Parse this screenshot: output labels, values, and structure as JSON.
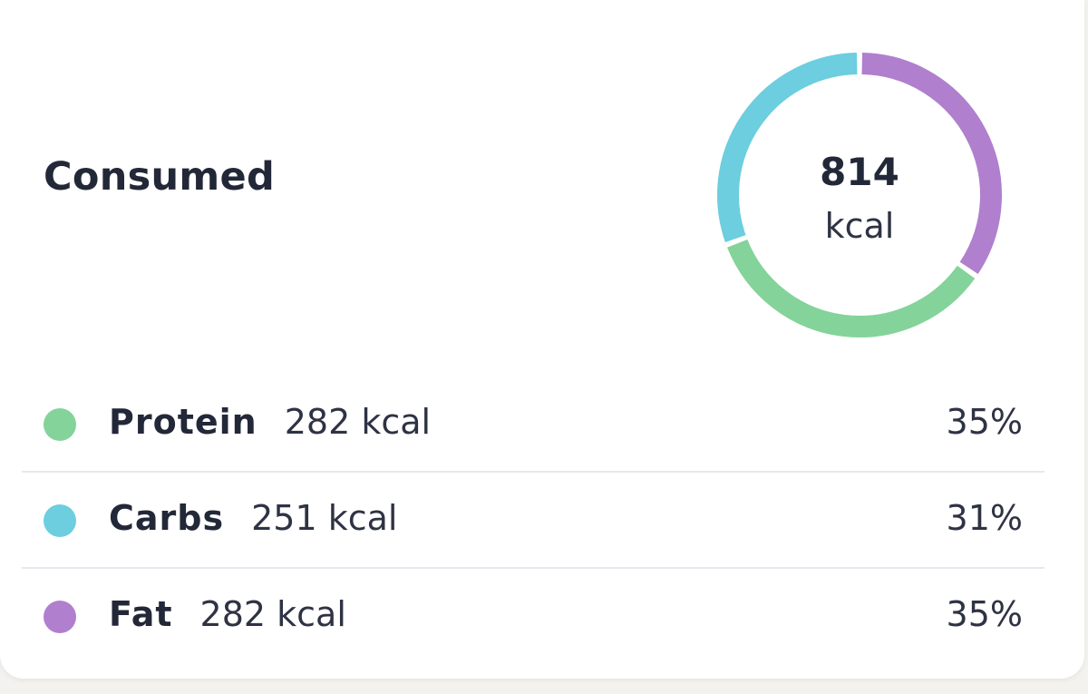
{
  "card": {
    "title": "Consumed"
  },
  "summary": {
    "total_value": "814",
    "total_unit": "kcal"
  },
  "macros": [
    {
      "name": "Protein",
      "kcal": "282 kcal",
      "percent": "35%",
      "value": 35,
      "color": "#84d39a",
      "icon": "protein-dot-icon"
    },
    {
      "name": "Carbs",
      "kcal": "251 kcal",
      "percent": "31%",
      "value": 31,
      "color": "#6ccede",
      "icon": "carbs-dot-icon"
    },
    {
      "name": "Fat",
      "kcal": "282 kcal",
      "percent": "35%",
      "value": 35,
      "color": "#b07fce",
      "icon": "fat-dot-icon"
    }
  ],
  "donut": {
    "order_clockwise_from_top": [
      "Fat",
      "Protein",
      "Carbs"
    ]
  }
}
